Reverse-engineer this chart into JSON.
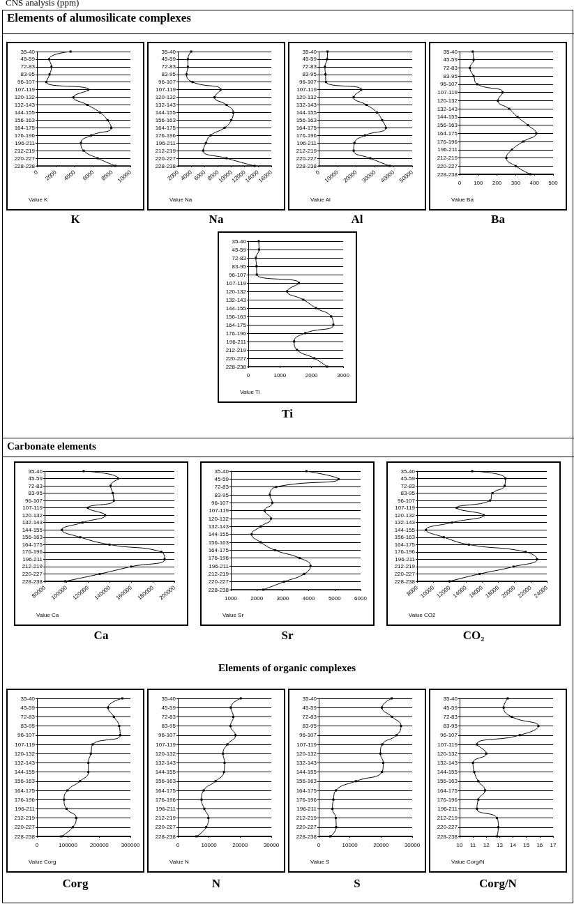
{
  "chart_data": [
    {
      "type": "line",
      "title": "K",
      "xlabel": "Value K",
      "annotations": [
        "CNS analysis (ppm)",
        "Elements of alumosilicate complexes"
      ],
      "orientation": "horizontal",
      "grid": "y",
      "marker": "square",
      "color": "#000000",
      "categories": [
        "35-40",
        "45-59",
        "72-83",
        "83-95",
        "96-107",
        "107-119",
        "120-132",
        "132-143",
        "144-155",
        "156-163",
        "164-175",
        "176-196",
        "196-211",
        "212-219",
        "220-227",
        "228-238"
      ],
      "values": [
        3600,
        1300,
        1550,
        1350,
        1000,
        5500,
        3900,
        5400,
        6750,
        7550,
        7950,
        5800,
        4700,
        5000,
        6500,
        8400
      ],
      "xlim": [
        0,
        10000
      ],
      "xticks": [
        0,
        2000,
        4000,
        6000,
        8000,
        10000
      ]
    },
    {
      "type": "line",
      "title": "Na",
      "xlabel": "Value Na",
      "orientation": "horizontal",
      "grid": "y",
      "marker": "square",
      "color": "#000000",
      "categories": [
        "35-40",
        "45-59",
        "72-83",
        "83-95",
        "96-107",
        "107-119",
        "120-132",
        "132-143",
        "144-155",
        "156-163",
        "164-175",
        "176-196",
        "196-211",
        "212-219",
        "220-227",
        "228-238"
      ],
      "values": [
        4000,
        3500,
        3500,
        3300,
        4200,
        8400,
        7500,
        9300,
        10300,
        10000,
        9000,
        6900,
        6200,
        5800,
        9300,
        13500
      ],
      "xlim": [
        2000,
        16000
      ],
      "xticks": [
        2000,
        4000,
        6000,
        8000,
        10000,
        12000,
        14000,
        16000
      ]
    },
    {
      "type": "line",
      "title": "Al",
      "xlabel": "Value Al",
      "orientation": "horizontal",
      "grid": "y",
      "marker": "square",
      "color": "#000000",
      "categories": [
        "35-40",
        "45-59",
        "72-83",
        "83-95",
        "96-107",
        "107-119",
        "120-132",
        "132-143",
        "144-155",
        "156-163",
        "164-175",
        "176-196",
        "196-211",
        "212-219",
        "220-227",
        "228-238"
      ],
      "values": [
        4700,
        4500,
        3300,
        3600,
        3900,
        22700,
        18700,
        25600,
        31200,
        33900,
        35900,
        24700,
        19100,
        18700,
        27600,
        38000
      ],
      "xlim": [
        0,
        50000
      ],
      "xticks": [
        0,
        10000,
        20000,
        30000,
        40000,
        50000
      ]
    },
    {
      "type": "line",
      "title": "Ba",
      "xlabel": "Value Ba",
      "orientation": "horizontal",
      "grid": "y",
      "marker": "square",
      "color": "#000000",
      "categories": [
        "35-40",
        "45-59",
        "72-83",
        "83-95",
        "96-107",
        "107-119",
        "120-132",
        "132-143",
        "144-155",
        "156-163",
        "164-175",
        "176-196",
        "196-211",
        "212-219",
        "220-227",
        "228-238"
      ],
      "values": [
        70,
        75,
        55,
        75,
        95,
        230,
        205,
        265,
        310,
        365,
        410,
        340,
        280,
        250,
        300,
        378
      ],
      "xlim": [
        0,
        500
      ],
      "xticks": [
        0,
        100,
        200,
        300,
        400,
        500
      ]
    },
    {
      "type": "line",
      "title": "Ti",
      "xlabel": "Value Ti",
      "orientation": "horizontal",
      "grid": "y",
      "marker": "square",
      "color": "#000000",
      "categories": [
        "35-40",
        "45-59",
        "72-83",
        "83-95",
        "96-107",
        "107-119",
        "120-132",
        "132-143",
        "144-155",
        "156-163",
        "164-175",
        "176-196",
        "196-211",
        "212-219",
        "220-227",
        "228-238"
      ],
      "values": [
        330,
        340,
        240,
        260,
        270,
        1600,
        1230,
        1740,
        2140,
        2620,
        2690,
        1800,
        1450,
        1540,
        2090,
        2490
      ],
      "xlim": [
        0,
        3000
      ],
      "xticks": [
        0,
        1000,
        2000,
        3000
      ]
    },
    {
      "type": "line",
      "title": "Ca",
      "xlabel": "Value Ca",
      "annotations": [
        "Carbonate elements"
      ],
      "orientation": "horizontal",
      "grid": "y",
      "marker": "square",
      "color": "#000000",
      "categories": [
        "35-40",
        "45-59",
        "72-83",
        "83-95",
        "96-107",
        "107-119",
        "120-132",
        "132-143",
        "144-155",
        "156-163",
        "164-175",
        "176-196",
        "196-211",
        "212-219",
        "220-227",
        "228-238"
      ],
      "values": [
        116000,
        148000,
        141000,
        143000,
        144000,
        120000,
        136000,
        115000,
        96000,
        113000,
        140000,
        188000,
        191000,
        160000,
        131000,
        99000
      ],
      "xlim": [
        80000,
        200000
      ],
      "xticks": [
        80000,
        100000,
        120000,
        140000,
        160000,
        180000,
        200000
      ]
    },
    {
      "type": "line",
      "title": "Sr",
      "xlabel": "Value Sr",
      "orientation": "horizontal",
      "grid": "y",
      "marker": "square",
      "color": "#000000",
      "categories": [
        "35-40",
        "45-59",
        "72-83",
        "83-95",
        "96-107",
        "107-119",
        "120-132",
        "132-143",
        "144-155",
        "156-163",
        "164-175",
        "176-196",
        "196-211",
        "212-219",
        "220-227",
        "228-238"
      ],
      "values": [
        3910,
        5150,
        2750,
        2500,
        2600,
        2300,
        2550,
        2150,
        1800,
        2150,
        2700,
        3650,
        4070,
        3830,
        3050,
        2250
      ],
      "xlim": [
        1000,
        6000
      ],
      "xticks": [
        1000,
        2000,
        3000,
        4000,
        5000,
        6000
      ]
    },
    {
      "type": "line",
      "title": "CO₂",
      "xlabel": "Value CO2",
      "orientation": "horizontal",
      "grid": "y",
      "marker": "square",
      "color": "#000000",
      "categories": [
        "35-40",
        "45-59",
        "72-83",
        "83-95",
        "96-107",
        "107-119",
        "120-132",
        "132-143",
        "144-155",
        "156-163",
        "164-175",
        "176-196",
        "196-211",
        "212-219",
        "220-227",
        "228-238"
      ],
      "values": [
        14800,
        18900,
        18800,
        17300,
        17000,
        12900,
        16200,
        12300,
        9100,
        11300,
        14400,
        21400,
        22800,
        19900,
        15700,
        12000
      ],
      "xlim": [
        8000,
        24000
      ],
      "xticks": [
        8000,
        10000,
        12000,
        14000,
        16000,
        18000,
        20000,
        22000,
        24000
      ]
    },
    {
      "type": "line",
      "title": "Corg",
      "xlabel": "Value Corg",
      "annotations": [
        "Elements of organic complexes"
      ],
      "orientation": "horizontal",
      "grid": "y",
      "marker": "square",
      "color": "#000000",
      "categories": [
        "35-40",
        "45-59",
        "72-83",
        "83-95",
        "96-107",
        "107-119",
        "120-132",
        "132-143",
        "144-155",
        "156-163",
        "164-175",
        "176-196",
        "196-211",
        "212-219",
        "220-227",
        "228-238"
      ],
      "values": [
        274000,
        228000,
        247000,
        264000,
        267000,
        179000,
        173000,
        165000,
        165000,
        138000,
        98000,
        87000,
        95000,
        126000,
        115000,
        78000
      ],
      "xlim": [
        0,
        300000
      ],
      "xticks": [
        0,
        100000,
        200000,
        300000
      ]
    },
    {
      "type": "line",
      "title": "N",
      "xlabel": "Value N",
      "orientation": "horizontal",
      "grid": "y",
      "marker": "square",
      "color": "#000000",
      "categories": [
        "35-40",
        "45-59",
        "72-83",
        "83-95",
        "96-107",
        "107-119",
        "120-132",
        "132-143",
        "144-155",
        "156-163",
        "164-175",
        "176-196",
        "196-211",
        "212-219",
        "220-227",
        "228-238"
      ],
      "values": [
        20200,
        17000,
        17800,
        16900,
        18500,
        15900,
        14500,
        15000,
        14800,
        12100,
        8300,
        7600,
        8500,
        9800,
        9100,
        6000
      ],
      "xlim": [
        0,
        30000
      ],
      "xticks": [
        0,
        10000,
        20000,
        30000
      ]
    },
    {
      "type": "line",
      "title": "S",
      "xlabel": "Value S",
      "orientation": "horizontal",
      "grid": "y",
      "marker": "square",
      "color": "#000000",
      "categories": [
        "35-40",
        "45-59",
        "72-83",
        "83-95",
        "96-107",
        "107-119",
        "120-132",
        "132-143",
        "144-155",
        "156-163",
        "164-175",
        "176-196",
        "196-211",
        "212-219",
        "220-227",
        "228-238"
      ],
      "values": [
        23400,
        20300,
        23500,
        26400,
        25000,
        20400,
        19800,
        20700,
        20300,
        11900,
        5500,
        4700,
        4400,
        5500,
        5600,
        3700
      ],
      "xlim": [
        0,
        30000
      ],
      "xticks": [
        0,
        10000,
        20000,
        30000
      ]
    },
    {
      "type": "line",
      "title": "Corg/N",
      "xlabel": "Value Corg/N",
      "orientation": "horizontal",
      "grid": "y",
      "marker": "square",
      "color": "#000000",
      "categories": [
        "35-40",
        "45-59",
        "72-83",
        "83-95",
        "96-107",
        "107-119",
        "120-132",
        "132-143",
        "144-155",
        "156-163",
        "164-175",
        "176-196",
        "196-211",
        "212-219",
        "220-227",
        "228-238"
      ],
      "values": [
        13.6,
        13.3,
        13.9,
        15.9,
        14.5,
        11.3,
        12.0,
        11.0,
        11.1,
        11.4,
        11.9,
        11.4,
        11.3,
        12.8,
        12.9,
        12.8
      ],
      "xlim": [
        10,
        17
      ],
      "xticks": [
        10,
        11,
        12,
        13,
        14,
        15,
        16,
        17
      ]
    }
  ]
}
